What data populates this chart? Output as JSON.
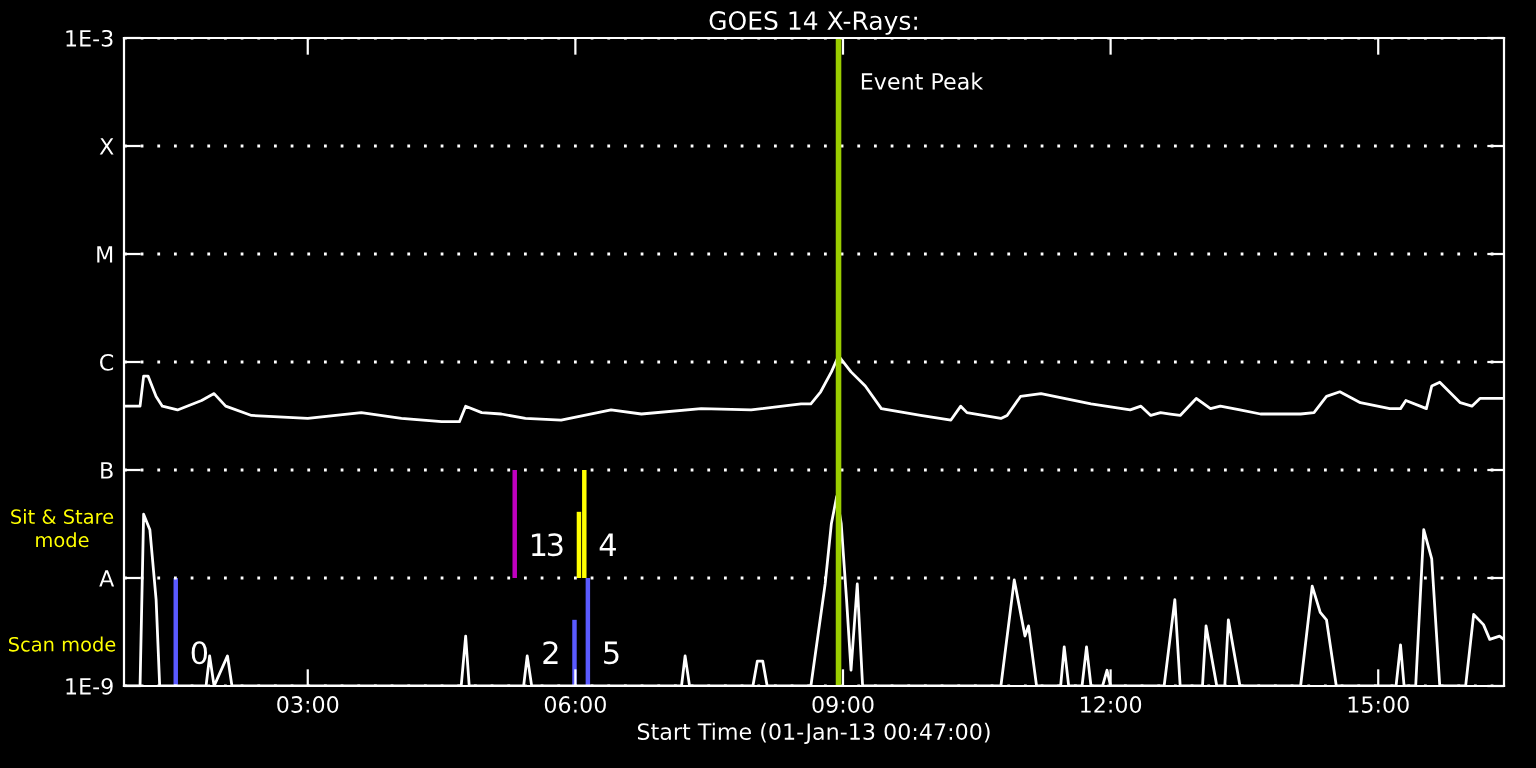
{
  "chart_data": {
    "type": "line",
    "title": "GOES 14 X-Rays:",
    "xlabel": "Start Time (01-Jan-13 00:47:00)",
    "xlim": [
      0.94,
      16.41
    ],
    "xticks": [
      {
        "value": 3,
        "label": "03:00"
      },
      {
        "value": 6,
        "label": "06:00"
      },
      {
        "value": 9,
        "label": "09:00"
      },
      {
        "value": 12,
        "label": "12:00"
      },
      {
        "value": 15,
        "label": "15:00"
      }
    ],
    "ylim": [
      1e-09,
      0.001
    ],
    "log": "y",
    "yticks": [
      {
        "value": 1e-09,
        "label": "1E-9"
      },
      {
        "value": 1e-08,
        "label": "A"
      },
      {
        "value": 1e-07,
        "label": "B"
      },
      {
        "value": 1e-06,
        "label": "C"
      },
      {
        "value": 1e-05,
        "label": "M"
      },
      {
        "value": 0.0001,
        "label": "X"
      },
      {
        "value": 0.001,
        "label": "1E-3"
      }
    ],
    "grid": "y",
    "legend": false,
    "marker": "none",
    "line_style": "solid",
    "series": [
      {
        "color": "#ffffff",
        "x": [
          0.94,
          1.12,
          1.16,
          1.21,
          1.3,
          1.37,
          1.54,
          1.81,
          1.95,
          2.08,
          2.37,
          3.0,
          3.6,
          4.05,
          4.5,
          4.7,
          4.77,
          4.95,
          5.17,
          5.44,
          5.84,
          6.4,
          6.74,
          7.41,
          7.97,
          8.53,
          8.64,
          8.75,
          8.87,
          8.95,
          9.09,
          9.25,
          9.43,
          9.87,
          10.21,
          10.32,
          10.39,
          10.77,
          10.84,
          10.99,
          11.22,
          11.78,
          12.22,
          12.34,
          12.45,
          12.56,
          12.67,
          12.78,
          12.96,
          13.12,
          13.23,
          13.45,
          13.68,
          14.13,
          14.28,
          14.42,
          14.57,
          14.8,
          15.13,
          15.25,
          15.31,
          15.47,
          15.54,
          15.6,
          15.69,
          15.92,
          16.05,
          16.14,
          16.41
        ],
        "values": [
          3.9e-07,
          3.9e-07,
          7.4e-07,
          7.4e-07,
          4.8e-07,
          3.9e-07,
          3.6e-07,
          4.4e-07,
          5.1e-07,
          3.9e-07,
          3.2e-07,
          3e-07,
          3.4e-07,
          3e-07,
          2.8e-07,
          2.8e-07,
          3.9e-07,
          3.4e-07,
          3.3e-07,
          3e-07,
          2.9e-07,
          3.6e-07,
          3.3e-07,
          3.7e-07,
          3.6e-07,
          4.1e-07,
          4.1e-07,
          5.3e-07,
          8.1e-07,
          1.14e-06,
          8.1e-07,
          6e-07,
          3.7e-07,
          3.2e-07,
          2.9e-07,
          3.9e-07,
          3.4e-07,
          3e-07,
          3.2e-07,
          4.8e-07,
          5.1e-07,
          4.1e-07,
          3.6e-07,
          3.9e-07,
          3.2e-07,
          3.4e-07,
          3.3e-07,
          3.2e-07,
          4.6e-07,
          3.7e-07,
          3.9e-07,
          3.6e-07,
          3.3e-07,
          3.3e-07,
          3.4e-07,
          4.8e-07,
          5.3e-07,
          4.2e-07,
          3.7e-07,
          3.7e-07,
          4.4e-07,
          3.9e-07,
          3.7e-07,
          6e-07,
          6.5e-07,
          4.2e-07,
          3.9e-07,
          4.6e-07,
          4.6e-07
        ]
      },
      {
        "color": "#ffffff",
        "x": [
          0.94,
          1.12,
          1.16,
          1.23,
          1.3,
          1.34,
          1.86,
          1.9,
          1.95,
          2.1,
          2.15,
          4.72,
          4.77,
          4.81,
          5.42,
          5.46,
          5.51,
          7.19,
          7.23,
          7.28,
          7.99,
          8.04,
          8.1,
          8.15,
          8.64,
          8.8,
          8.87,
          8.93,
          8.98,
          9.04,
          9.09,
          9.16,
          9.22,
          10.77,
          10.92,
          11.04,
          11.08,
          11.17,
          11.44,
          11.48,
          11.53,
          11.68,
          11.73,
          11.78,
          11.91,
          11.96,
          12.0,
          12.6,
          12.72,
          12.78,
          13.03,
          13.07,
          13.19,
          13.28,
          13.32,
          13.45,
          14.13,
          14.26,
          14.35,
          14.42,
          14.53,
          15.2,
          15.25,
          15.29,
          15.42,
          15.51,
          15.6,
          15.69,
          15.98,
          16.07,
          16.18,
          16.25,
          16.36,
          16.41
        ],
        "values": [
          1e-09,
          1e-09,
          3.9e-08,
          2.8e-08,
          6.3e-09,
          1e-09,
          1e-09,
          1.9e-09,
          1e-09,
          1.9e-09,
          1e-09,
          1e-09,
          2.9e-09,
          1e-09,
          1e-09,
          1.9e-09,
          1e-09,
          1e-09,
          1.9e-09,
          1e-09,
          1e-09,
          1.7e-09,
          1.7e-09,
          1e-09,
          1e-09,
          8.8e-09,
          3.2e-08,
          5.7e-08,
          3.2e-08,
          6.3e-09,
          1.4e-09,
          8.8e-09,
          1e-09,
          1e-09,
          9.6e-09,
          2.9e-09,
          3.6e-09,
          1e-09,
          1e-09,
          2.3e-09,
          1e-09,
          1e-09,
          2.3e-09,
          1e-09,
          1e-09,
          1.4e-09,
          1e-09,
          1e-09,
          6.3e-09,
          1e-09,
          1e-09,
          3.6e-09,
          1e-09,
          1e-09,
          4.1e-09,
          1e-09,
          1e-09,
          8.4e-09,
          4.8e-09,
          4.1e-09,
          1e-09,
          1e-09,
          2.4e-09,
          1e-09,
          1e-09,
          2.8e-08,
          1.5e-08,
          1e-09,
          1e-09,
          4.6e-09,
          3.7e-09,
          2.7e-09,
          2.9e-09,
          2.7e-09
        ]
      },
      {
        "type": "bar",
        "color": "#5a5aff",
        "x": [
          1.52,
          5.99,
          6.14
        ],
        "base": [
          1e-09,
          1e-09,
          1e-09
        ],
        "values": [
          9e-09,
          3.1e-09,
          9e-09
        ]
      },
      {
        "type": "bar",
        "color": "#c000c0",
        "x": [
          5.32
        ],
        "base": [
          1e-08
        ],
        "values": [
          9e-08
        ]
      },
      {
        "type": "bar",
        "color": "#ffff00",
        "x": [
          6.04,
          6.1
        ],
        "base": [
          1e-08,
          1e-08
        ],
        "values": [
          3.1e-08,
          9e-08
        ]
      }
    ],
    "ref_lines": [
      {
        "axis": "x",
        "value": 8.95,
        "label": "Event Peak",
        "color": "#9acd00"
      }
    ],
    "annotations": [
      "Sit & Stare\nmode",
      "Scan mode",
      {
        "text": "0",
        "x": 1.52,
        "y": 1e-09
      },
      {
        "text": "1",
        "x": 5.32,
        "y": 1e-08
      },
      {
        "text": "2",
        "x": 5.99,
        "y": 1e-09
      },
      {
        "text": "3",
        "x": 6.04,
        "y": 1e-08
      },
      {
        "text": "4",
        "x": 6.1,
        "y": 1e-08
      },
      {
        "text": "5",
        "x": 6.14,
        "y": 1e-09
      }
    ]
  }
}
